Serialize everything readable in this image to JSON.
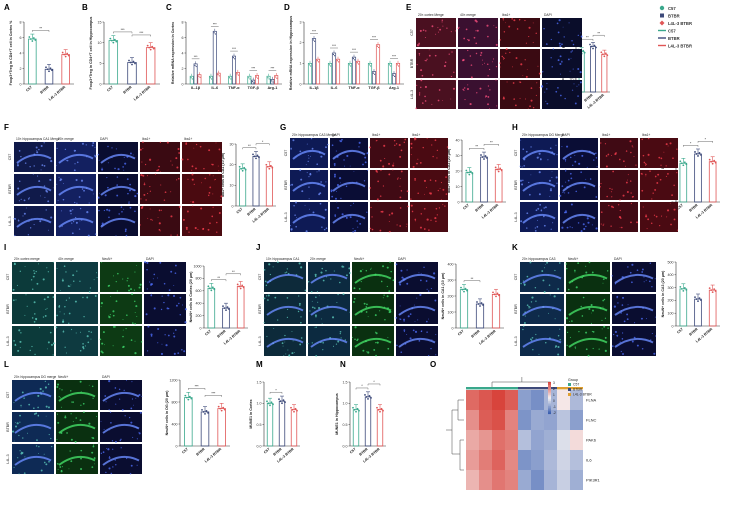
{
  "colors": {
    "c57": "#3aa88c",
    "bt": "#3d4a7a",
    "lar": "#e05656",
    "ax": "#333333",
    "hm_red": "#d8443c",
    "hm_blue": "#3a5fb0",
    "hm_white": "#f7f4f4"
  },
  "panel_labels": {
    "A": "A",
    "B": "B",
    "C": "C",
    "D": "D",
    "E": "E",
    "F": "F",
    "G": "G",
    "H": "H",
    "I": "I",
    "J": "J",
    "K": "K",
    "L": "L",
    "M": "M",
    "N": "N",
    "O": "O"
  },
  "groups": [
    "C57",
    "BTBR",
    "L4L-3 BTBR"
  ],
  "legend": {
    "items": [
      {
        "label": "C57",
        "marker": "circle",
        "color": "#3aa88c"
      },
      {
        "label": "BTBR",
        "marker": "square",
        "color": "#3d4a7a"
      },
      {
        "label": "L4L-3 BTBR",
        "marker": "diamond",
        "color": "#e05656"
      },
      {
        "label": "C57",
        "marker": "line",
        "color": "#3aa88c"
      },
      {
        "label": "BTBR",
        "marker": "line",
        "color": "#3d4a7a"
      },
      {
        "label": "L4L-3 BTBR",
        "marker": "line",
        "color": "#e05656"
      }
    ]
  },
  "micro": {
    "E": {
      "cols": [
        "20× cortex Merge",
        "40× merge",
        "Iba1+",
        "DAPI"
      ],
      "rows": [
        "C57",
        "BTBR",
        "L4L-3"
      ]
    },
    "F": {
      "cols": [
        "10× hippocampus CA1 Merge",
        "20× merge",
        "DAPI",
        "Iba1+",
        "Iba1+"
      ],
      "rows": [
        "C57",
        "BTBR",
        "L4L-3"
      ]
    },
    "G": {
      "cols": [
        "20× hippocampus CA3 Merge",
        "DAPI",
        "Iba1+",
        "Iba1+"
      ],
      "rows": [
        "C57",
        "BTBR",
        "L4L-3"
      ]
    },
    "H": {
      "cols": [
        "20× hippocampus DG Merge",
        "DAPI",
        "Iba1+",
        "Iba1+"
      ],
      "rows": [
        "C57",
        "BTBR",
        "L4L-3"
      ]
    },
    "I": {
      "cols": [
        "20× cortex merge",
        "40× merge",
        "NeuN+",
        "DAPI"
      ],
      "rows": [
        "C57",
        "BTBR",
        "L4L-3"
      ]
    },
    "J": {
      "cols": [
        "10× hippocampus CA1",
        "20× merge",
        "NeuN+",
        "DAPI"
      ],
      "rows": [
        "C57",
        "BTBR",
        "L4L-3"
      ]
    },
    "K": {
      "cols": [
        "20× hippocampus CA3",
        "NeuN+",
        "DAPI"
      ],
      "rows": [
        "C57",
        "BTBR",
        "L4L-3"
      ]
    },
    "L": {
      "cols": [
        "20× hippocampus DG merge",
        "NeuN+",
        "DAPI"
      ],
      "rows": [
        "C57",
        "BTBR",
        "L4L-3"
      ]
    }
  },
  "heatmap": {
    "rows": [
      "FLNA",
      "FLNC",
      "PAK6",
      "IL6",
      "PIK3R1"
    ],
    "legend_title": "Group",
    "legend_items": [
      "C57",
      "BTBR",
      "L4L-3 BTBR"
    ],
    "scale_ticks": [
      "3",
      "2",
      "1",
      "0",
      "-1",
      "-2"
    ],
    "values": [
      [
        2.2,
        2.5,
        2.9,
        2.4,
        -1.6,
        -1.9,
        -1.2,
        0.2,
        -1.1
      ],
      [
        1.6,
        2.4,
        2.6,
        1.8,
        -1.8,
        -1.4,
        -1.5,
        -0.9,
        -1.6
      ],
      [
        1.2,
        1.5,
        2.1,
        1.9,
        -1.0,
        -1.5,
        -1.3,
        -0.4,
        0.4
      ],
      [
        1.4,
        1.9,
        2.3,
        1.7,
        -1.8,
        -1.6,
        -1.1,
        -0.6,
        -1.0
      ],
      [
        1.0,
        1.6,
        2.0,
        1.8,
        -1.4,
        -1.9,
        -1.2,
        -0.7,
        -1.3
      ]
    ]
  },
  "chart_data": [
    {
      "id": "A",
      "type": "bar",
      "title": "",
      "ylabel": "Foxp3+Treg in CD4+T cell in Cortex %",
      "ylim": [
        0,
        8
      ],
      "yticks": [
        "0",
        "2",
        "4",
        "6",
        "8"
      ],
      "categories": [
        "C57",
        "BTBR",
        "L4L-3 BTBR"
      ],
      "values": [
        5.8,
        1.9,
        3.8
      ],
      "sig": [
        "**"
      ]
    },
    {
      "id": "B",
      "type": "bar",
      "title": "",
      "ylabel": "Foxp3+Treg in CD4+T cell in Hippocampus",
      "ylim": [
        0,
        15
      ],
      "yticks": [
        "0",
        "5",
        "10",
        "15"
      ],
      "categories": [
        "C57",
        "BTBR",
        "L4L-3 BTBR"
      ],
      "values": [
        10.5,
        5.2,
        8.8
      ],
      "sig": [
        "***",
        "***"
      ]
    },
    {
      "id": "C",
      "type": "bar",
      "title": "",
      "ylabel": "Relative mRNA expression in Cortex",
      "ylim": [
        0,
        8
      ],
      "yticks": [
        "0",
        "2",
        "4",
        "6",
        "8"
      ],
      "categories": [
        "IL-1β",
        "IL-6",
        "TNF-α",
        "TGF-β",
        "Arg-1"
      ],
      "series": [
        {
          "name": "C57",
          "values": [
            1.0,
            1.0,
            1.0,
            1.0,
            1.0
          ]
        },
        {
          "name": "BTBR",
          "values": [
            2.6,
            6.8,
            3.6,
            0.5,
            0.6
          ]
        },
        {
          "name": "L4L-3 BTBR",
          "values": [
            1.2,
            1.4,
            1.5,
            1.1,
            1.1
          ]
        }
      ],
      "sig": [
        "***",
        "***",
        "***",
        "***",
        "***"
      ]
    },
    {
      "id": "D",
      "type": "bar",
      "title": "",
      "ylabel": "Relative mRNA expression in Hippocampus",
      "ylim": [
        0,
        3
      ],
      "yticks": [
        "0",
        "1",
        "2",
        "3"
      ],
      "categories": [
        "IL-1β",
        "IL-6",
        "TNF-α",
        "TGF-β",
        "Arg-1"
      ],
      "series": [
        {
          "name": "C57",
          "values": [
            1.0,
            1.0,
            1.0,
            1.0,
            1.0
          ]
        },
        {
          "name": "BTBR",
          "values": [
            2.2,
            1.5,
            1.3,
            0.6,
            0.5
          ]
        },
        {
          "name": "L4L-3 BTBR",
          "values": [
            1.2,
            1.2,
            1.1,
            1.9,
            1.0
          ]
        }
      ],
      "sig": [
        "***",
        "***",
        "***",
        "***",
        "***"
      ]
    },
    {
      "id": "E",
      "type": "bar",
      "title": "",
      "ylabel": "Iba1+ cells in Cortex (20 μm)",
      "ylim": [
        0,
        80
      ],
      "yticks": [
        "0",
        "20",
        "40",
        "60",
        "80"
      ],
      "categories": [
        "C57",
        "BTBR",
        "L4L-3 BTBR"
      ],
      "values": [
        62,
        70,
        58
      ],
      "sig": [
        "**",
        "**"
      ]
    },
    {
      "id": "F",
      "type": "bar",
      "title": "",
      "ylabel": "Iba1+ cells in CA1 (10 μm)",
      "ylim": [
        0,
        30
      ],
      "yticks": [
        "0",
        "10",
        "20",
        "30"
      ],
      "categories": [
        "C57",
        "BTBR",
        "L4L-3 BTBR"
      ],
      "values": [
        18,
        24,
        19
      ],
      "sig": [
        "**",
        "*"
      ]
    },
    {
      "id": "G",
      "type": "bar",
      "title": "",
      "ylabel": "Iba1+ cells in CA3 (20 μm)",
      "ylim": [
        0,
        40
      ],
      "yticks": [
        "0",
        "10",
        "20",
        "30",
        "40"
      ],
      "categories": [
        "C57",
        "BTBR",
        "L4L-3 BTBR"
      ],
      "values": [
        19,
        29,
        21
      ],
      "sig": [
        "**",
        "**"
      ]
    },
    {
      "id": "H",
      "type": "bar",
      "title": "",
      "ylabel": "Iba1+ cells in DG (20 μm)",
      "ylim": [
        0,
        40
      ],
      "yticks": [
        "0",
        "10",
        "20",
        "30",
        "40"
      ],
      "categories": [
        "C57",
        "BTBR",
        "L4L-3 BTBR"
      ],
      "values": [
        25,
        31,
        26
      ],
      "sig": [
        "*",
        "*"
      ]
    },
    {
      "id": "I",
      "type": "bar",
      "title": "",
      "ylabel": "NeuN+ cells in Cortex (20 μm)",
      "ylim": [
        0,
        1000
      ],
      "yticks": [
        "0",
        "200",
        "400",
        "600",
        "800",
        "1000"
      ],
      "categories": [
        "C57",
        "BTBR",
        "L4L-3 BTBR"
      ],
      "values": [
        640,
        320,
        670
      ],
      "sig": [
        "**",
        "**"
      ]
    },
    {
      "id": "J",
      "type": "bar",
      "title": "",
      "ylabel": "NeuN+ cells in CA1 (10 μm)",
      "ylim": [
        0,
        400
      ],
      "yticks": [
        "0",
        "100",
        "200",
        "300",
        "400"
      ],
      "categories": [
        "C57",
        "BTBR",
        "L4L-3 BTBR"
      ],
      "values": [
        240,
        150,
        210
      ],
      "sig": [
        "**"
      ]
    },
    {
      "id": "K",
      "type": "bar",
      "title": "",
      "ylabel": "NeuN+ cells in CA3 (20 μm)",
      "ylim": [
        0,
        500
      ],
      "yticks": [
        "0",
        "100",
        "200",
        "300",
        "400",
        "500"
      ],
      "categories": [
        "C57",
        "BTBR",
        "L4L-3 BTBR"
      ],
      "values": [
        290,
        210,
        280
      ],
      "sig": []
    },
    {
      "id": "L",
      "type": "bar",
      "title": "",
      "ylabel": "NeuN+ cells in DG (20 μm)",
      "ylim": [
        0,
        1200
      ],
      "yticks": [
        "0",
        "400",
        "800",
        "1200"
      ],
      "categories": [
        "C57",
        "BTBR",
        "L4L-3 BTBR"
      ],
      "values": [
        880,
        620,
        680
      ],
      "sig": [
        "***",
        "***"
      ]
    },
    {
      "id": "M",
      "type": "bar",
      "title": "",
      "ylabel": "MUNE1 in Cortex",
      "ylim": [
        0,
        1.5
      ],
      "yticks": [
        "0.0",
        "0.5",
        "1.0",
        "1.5"
      ],
      "categories": [
        "C57",
        "BTBR",
        "L4L-3 BTBR"
      ],
      "values": [
        1.0,
        1.05,
        0.85
      ],
      "sig": [
        "*"
      ]
    },
    {
      "id": "N",
      "type": "bar",
      "title": "",
      "ylabel": "MUNE1 in Hippocampus",
      "ylim": [
        0,
        1.5
      ],
      "yticks": [
        "0.0",
        "0.5",
        "1.0",
        "1.5"
      ],
      "categories": [
        "C57",
        "BTBR",
        "L4L-3 BTBR"
      ],
      "values": [
        0.85,
        1.15,
        0.85
      ],
      "sig": [
        "*",
        "*"
      ]
    }
  ]
}
